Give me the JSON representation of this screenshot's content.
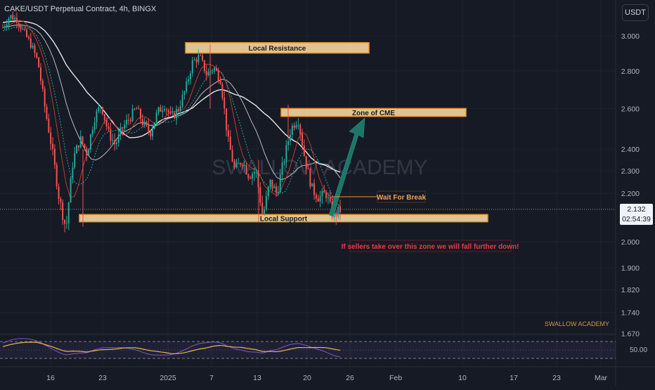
{
  "header": {
    "symbol_title": "CAKE/USDT Perpetual Contract, 4h, BINGX",
    "currency_button": "USDT"
  },
  "price_tag": {
    "price": "2.132",
    "countdown": "02:54:39"
  },
  "rsi": {
    "level_label": "50.00"
  },
  "watermark": "SWALLOW ACADEMY",
  "watermark_small": "SWALLOW ACADEMY",
  "colors": {
    "background": "#161a25",
    "up": "#26a69a",
    "down": "#ef5350",
    "zone_fill": "#f5d79e",
    "zone_border": "#e8962e",
    "arrow": "#1e7b6a",
    "ema_white": "#e8e8e8",
    "rsi_line": "#e6b84a",
    "rsi_band": "#7e57c2",
    "warning_text": "#f23645"
  },
  "chart_data": {
    "type": "candlestick",
    "symbol": "CAKE/USDT Perpetual Contract",
    "timeframe": "4h",
    "exchange": "BINGX",
    "y_axis": {
      "scale": "log",
      "ticks": [
        "3.000",
        "2.800",
        "2.600",
        "2.400",
        "2.300",
        "2.200",
        "2.000",
        "1.900",
        "1.820",
        "1.740",
        "1.670"
      ],
      "range": [
        1.65,
        3.05
      ]
    },
    "x_axis": {
      "ticks": [
        "16",
        "23",
        "2025",
        "7",
        "13",
        "20",
        "26",
        "Feb",
        "10",
        "17",
        "23",
        "Mar"
      ]
    },
    "last_price": 2.132,
    "approx_closes": [
      3.05,
      3.12,
      3.1,
      3.02,
      2.95,
      2.85,
      2.6,
      2.4,
      2.18,
      2.05,
      2.35,
      2.45,
      2.38,
      2.55,
      2.62,
      2.48,
      2.42,
      2.5,
      2.55,
      2.6,
      2.52,
      2.48,
      2.58,
      2.62,
      2.55,
      2.6,
      2.7,
      2.85,
      2.88,
      2.78,
      2.82,
      2.75,
      2.45,
      2.3,
      2.35,
      2.28,
      2.3,
      2.1,
      2.25,
      2.2,
      2.35,
      2.5,
      2.55,
      2.35,
      2.22,
      2.18,
      2.2,
      2.1,
      2.13
    ],
    "zones": [
      {
        "name": "Local Resistance",
        "price_low": 2.9,
        "price_high": 2.96
      },
      {
        "name": "Zone of CME",
        "price_low": 2.56,
        "price_high": 2.6
      },
      {
        "name": "Local Support",
        "price_low": 2.08,
        "price_high": 2.11
      }
    ],
    "annotations": [
      {
        "text": "Local Resistance"
      },
      {
        "text": "Zone of CME"
      },
      {
        "text": "Local Support"
      },
      {
        "text": "Wait For Break"
      },
      {
        "text": "If sellers take over this zone we will fall further down!"
      }
    ],
    "indicator": {
      "name": "RSI",
      "level": 50
    }
  }
}
